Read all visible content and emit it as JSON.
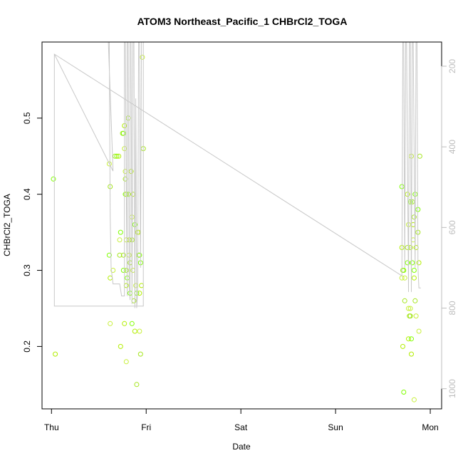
{
  "chart_data": {
    "type": "scatter",
    "title": "ATOM3 Northeast_Pacific_1 CHBrCl2_TOGA",
    "xlabel": "Date",
    "ylabel": "CHBrCl2_TOGA",
    "x_ticks": [
      {
        "day": 0,
        "label": "Thu"
      },
      {
        "day": 1,
        "label": "Fri"
      },
      {
        "day": 2,
        "label": "Sat"
      },
      {
        "day": 3,
        "label": "Sun"
      },
      {
        "day": 4,
        "label": "Mon"
      }
    ],
    "y_ticks": [
      0.2,
      0.3,
      0.4,
      0.5
    ],
    "y_right_ticks": [
      200,
      400,
      600,
      800,
      1000
    ],
    "xlim": [
      -0.1,
      4.12
    ],
    "ylim": [
      0.118,
      0.6
    ],
    "y_right_lim": [
      1050,
      140
    ],
    "y_right_reversed": true,
    "grid": false,
    "colors": {
      "points": [
        "#7fff00",
        "#b2ee00",
        "#c8f03c",
        "#a5e61e"
      ],
      "secondary_line": "#c8c8c8"
    },
    "series": [
      {
        "points": [
          [
            0.02,
            0.42
          ],
          [
            0.04,
            0.19
          ],
          [
            0.61,
            0.44
          ],
          [
            0.62,
            0.41
          ],
          [
            0.61,
            0.32
          ],
          [
            0.62,
            0.29
          ],
          [
            0.62,
            0.23
          ],
          [
            0.67,
            0.45
          ],
          [
            0.69,
            0.45
          ],
          [
            0.71,
            0.45
          ],
          [
            0.72,
            0.34
          ],
          [
            0.72,
            0.32
          ],
          [
            0.73,
            0.35
          ],
          [
            0.73,
            0.2
          ],
          [
            0.65,
            0.3
          ],
          [
            0.75,
            0.48
          ],
          [
            0.76,
            0.48
          ],
          [
            0.77,
            0.49
          ],
          [
            0.77,
            0.46
          ],
          [
            0.76,
            0.32
          ],
          [
            0.76,
            0.3
          ],
          [
            0.77,
            0.23
          ],
          [
            0.78,
            0.43
          ],
          [
            0.78,
            0.42
          ],
          [
            0.78,
            0.4
          ],
          [
            0.79,
            0.4
          ],
          [
            0.79,
            0.34
          ],
          [
            0.79,
            0.3
          ],
          [
            0.8,
            0.29
          ],
          [
            0.79,
            0.28
          ],
          [
            0.79,
            0.18
          ],
          [
            0.81,
            0.5
          ],
          [
            0.81,
            0.4
          ],
          [
            0.82,
            0.34
          ],
          [
            0.82,
            0.32
          ],
          [
            0.83,
            0.31
          ],
          [
            0.83,
            0.27
          ],
          [
            0.84,
            0.43
          ],
          [
            0.85,
            0.37
          ],
          [
            0.85,
            0.34
          ],
          [
            0.85,
            0.23
          ],
          [
            0.86,
            0.4
          ],
          [
            0.86,
            0.3
          ],
          [
            0.87,
            0.26
          ],
          [
            0.88,
            0.36
          ],
          [
            0.88,
            0.22
          ],
          [
            0.89,
            0.28
          ],
          [
            0.9,
            0.15
          ],
          [
            0.9,
            0.27
          ],
          [
            0.91,
            0.35
          ],
          [
            0.92,
            0.35
          ],
          [
            0.92,
            0.32
          ],
          [
            0.93,
            0.32
          ],
          [
            0.93,
            0.27
          ],
          [
            0.93,
            0.22
          ],
          [
            0.94,
            0.19
          ],
          [
            0.94,
            0.31
          ],
          [
            0.95,
            0.28
          ],
          [
            0.96,
            0.58
          ],
          [
            0.97,
            0.46
          ],
          [
            3.7,
            0.41
          ],
          [
            3.7,
            0.33
          ],
          [
            3.7,
            0.29
          ],
          [
            3.71,
            0.3
          ],
          [
            3.72,
            0.3
          ],
          [
            3.71,
            0.2
          ],
          [
            3.73,
            0.29
          ],
          [
            3.73,
            0.26
          ],
          [
            3.72,
            0.14
          ],
          [
            3.76,
            0.4
          ],
          [
            3.77,
            0.36
          ],
          [
            3.76,
            0.33
          ],
          [
            3.76,
            0.31
          ],
          [
            3.77,
            0.21
          ],
          [
            3.77,
            0.25
          ],
          [
            3.78,
            0.24
          ],
          [
            3.79,
            0.39
          ],
          [
            3.79,
            0.33
          ],
          [
            3.79,
            0.25
          ],
          [
            3.79,
            0.24
          ],
          [
            3.8,
            0.21
          ],
          [
            3.8,
            0.19
          ],
          [
            3.8,
            0.45
          ],
          [
            3.81,
            0.39
          ],
          [
            3.81,
            0.31
          ],
          [
            3.82,
            0.36
          ],
          [
            3.82,
            0.34
          ],
          [
            3.83,
            0.37
          ],
          [
            3.83,
            0.3
          ],
          [
            3.83,
            0.29
          ],
          [
            3.83,
            0.13
          ],
          [
            3.84,
            0.26
          ],
          [
            3.84,
            0.4
          ],
          [
            3.85,
            0.33
          ],
          [
            3.85,
            0.24
          ],
          [
            3.87,
            0.35
          ],
          [
            3.87,
            0.38
          ],
          [
            3.88,
            0.31
          ],
          [
            3.88,
            0.22
          ],
          [
            3.89,
            0.45
          ]
        ]
      },
      {
        "axis": "right",
        "points": [
          [
            0.03,
            795
          ],
          [
            0.03,
            170
          ],
          [
            0.65,
            460
          ],
          [
            0.6,
            140
          ],
          [
            0.61,
            140
          ],
          [
            0.62,
            570
          ],
          [
            0.63,
            700
          ],
          [
            0.65,
            740
          ],
          [
            0.68,
            740
          ],
          [
            0.72,
            740
          ],
          [
            0.74,
            770
          ],
          [
            0.77,
            770
          ],
          [
            0.77,
            140
          ],
          [
            0.78,
            140
          ],
          [
            0.79,
            500
          ],
          [
            0.8,
            770
          ],
          [
            0.8,
            140
          ],
          [
            0.81,
            140
          ],
          [
            0.82,
            740
          ],
          [
            0.83,
            780
          ],
          [
            0.83,
            140
          ],
          [
            0.84,
            140
          ],
          [
            0.85,
            790
          ],
          [
            0.86,
            140
          ],
          [
            0.86,
            140
          ],
          [
            0.87,
            140
          ],
          [
            0.88,
            800
          ],
          [
            0.89,
            280
          ],
          [
            0.9,
            800
          ],
          [
            0.91,
            760
          ],
          [
            0.92,
            140
          ],
          [
            0.93,
            140
          ],
          [
            0.94,
            700
          ],
          [
            0.95,
            140
          ],
          [
            0.96,
            140
          ],
          [
            0.97,
            120
          ],
          [
            0.97,
            795
          ],
          [
            0.03,
            795
          ],
          [
            0.03,
            170
          ],
          [
            3.7,
            720
          ],
          [
            3.71,
            140
          ],
          [
            3.72,
            140
          ],
          [
            3.73,
            700
          ],
          [
            3.74,
            140
          ],
          [
            3.75,
            140
          ],
          [
            3.77,
            760
          ],
          [
            3.78,
            140
          ],
          [
            3.79,
            140
          ],
          [
            3.8,
            760
          ],
          [
            3.81,
            140
          ],
          [
            3.82,
            140
          ],
          [
            3.84,
            700
          ],
          [
            3.85,
            140
          ],
          [
            3.86,
            140
          ],
          [
            3.87,
            700
          ],
          [
            3.88,
            750
          ],
          [
            3.9,
            750
          ]
        ]
      }
    ]
  }
}
